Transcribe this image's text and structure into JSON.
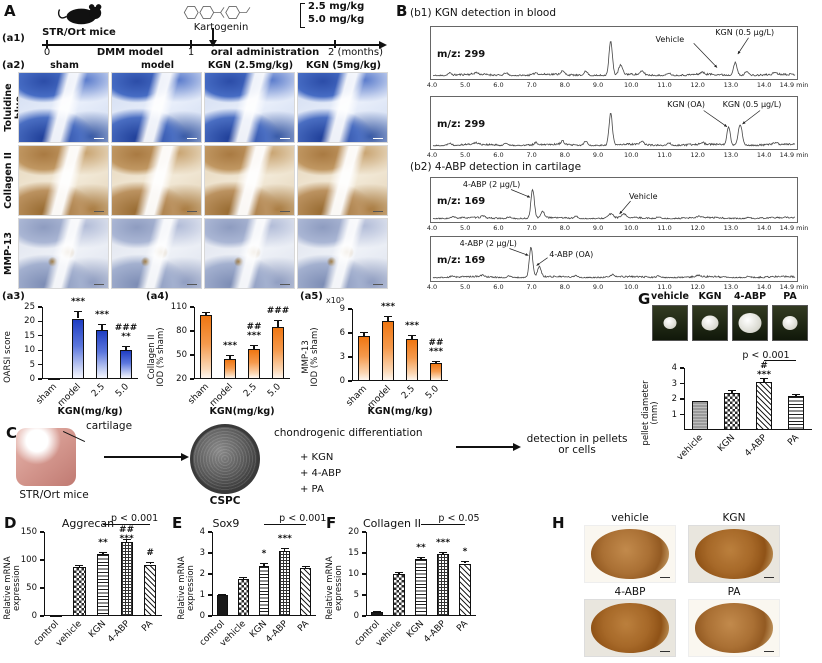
{
  "panels": {
    "A": "A",
    "B": "B",
    "C": "C",
    "D": "D",
    "E": "E",
    "F": "F",
    "G": "G",
    "H": "H"
  },
  "a1": {
    "tag": "(a1)",
    "mouse_label": "STR/Ort mice",
    "drug_label": "Kartogenin",
    "dose1": "2.5 mg/kg",
    "dose2": "5.0 mg/kg",
    "t0": "0",
    "t1": "1",
    "t2": "2 (months)",
    "phase1": "DMM model",
    "phase2": "oral administration"
  },
  "a2": {
    "tag": "(a2)",
    "rows": [
      "Toluidine blue",
      "Collagen II",
      "MMP-13"
    ],
    "cols": [
      "sham",
      "model",
      "KGN (2.5mg/kg)",
      "KGN (5mg/kg)"
    ]
  },
  "charts": {
    "a3": {
      "tag": "(a3)",
      "type": "bar",
      "ylabel": "OARSI score",
      "categories": [
        "sham",
        "model",
        "2.5",
        "5.0"
      ],
      "values": [
        0.5,
        21,
        17,
        10
      ],
      "errors": [
        0.3,
        2.5,
        2,
        1.5
      ],
      "sig": [
        "",
        "***",
        "***",
        "###\n**"
      ],
      "yticks": [
        0,
        5,
        10,
        15,
        20,
        25
      ],
      "ylim": [
        0,
        25
      ],
      "xlabel": "KGN(mg/kg)",
      "style": "blue"
    },
    "a4": {
      "tag": "(a4)",
      "type": "bar",
      "ylabel": "Collagen II\nIOD (% sham)",
      "categories": [
        "sham",
        "model",
        "2.5",
        "5.0"
      ],
      "values": [
        100,
        45,
        57,
        85
      ],
      "errors": [
        4,
        5,
        5,
        9
      ],
      "sig": [
        "",
        "***",
        "##\n***",
        "###"
      ],
      "yticks": [
        20,
        50,
        80,
        110
      ],
      "ylim": [
        20,
        110
      ],
      "xlabel": "KGN(mg/kg)",
      "style": "orange"
    },
    "a5": {
      "tag": "(a5)",
      "type": "bar",
      "ylabel": "MMP-13\nIOD (% sham)",
      "y_multiplier": "x10³",
      "categories": [
        "sham",
        "model",
        "2.5",
        "5.0"
      ],
      "values": [
        5.6,
        7.5,
        5.2,
        2.2
      ],
      "errors": [
        0.5,
        0.6,
        0.5,
        0.3
      ],
      "sig": [
        "",
        "***",
        "***",
        "##\n***"
      ],
      "yticks": [
        0,
        3,
        6,
        9
      ],
      "ylim": [
        0,
        9
      ],
      "xlabel": "KGN(mg/kg)",
      "style": "orange"
    },
    "D": {
      "title": "Aggrecan",
      "type": "bar",
      "ylabel": "Relative mRNA\nexpression",
      "categories": [
        "control",
        "vehicle",
        "KGN",
        "4-ABP",
        "PA"
      ],
      "values": [
        2,
        88,
        110,
        132,
        92
      ],
      "errors": [
        1,
        4,
        5,
        5,
        4
      ],
      "sig": [
        "",
        "",
        "**",
        "##\n***",
        "#"
      ],
      "yticks": [
        0,
        50,
        100,
        150
      ],
      "ylim": [
        0,
        150
      ],
      "patterns": [
        "solid",
        "check",
        "hlines",
        "grid",
        "diag"
      ],
      "bracket": {
        "from": 2,
        "to": 4,
        "label": "p < 0.001",
        "dx": 8
      }
    },
    "E": {
      "title": "Sox9",
      "type": "bar",
      "ylabel": "Relative mRNA\nexpression",
      "categories": [
        "control",
        "vehicle",
        "KGN",
        "4-ABP",
        "PA"
      ],
      "values": [
        1,
        1.75,
        2.4,
        3.1,
        2.3
      ],
      "errors": [
        0.05,
        0.1,
        0.15,
        0.12,
        0.1
      ],
      "sig": [
        "",
        "",
        "*",
        "***",
        ""
      ],
      "yticks": [
        0,
        1,
        2,
        3,
        4
      ],
      "ylim": [
        0,
        4
      ],
      "patterns": [
        "solid",
        "check",
        "hlines",
        "grid",
        "diag"
      ],
      "bracket": {
        "from": 2,
        "to": 4,
        "label": "p < 0.001",
        "dx": 18
      }
    },
    "F": {
      "title": "Collagen II",
      "type": "bar",
      "ylabel": "Relative mRNA\nexpression",
      "categories": [
        "control",
        "vehicle",
        "KGN",
        "4-ABP",
        "PA"
      ],
      "values": [
        1,
        10,
        13.5,
        14.8,
        12.5
      ],
      "errors": [
        0.3,
        0.5,
        0.6,
        0.5,
        0.5
      ],
      "sig": [
        "",
        "",
        "**",
        "***",
        "*"
      ],
      "yticks": [
        0,
        5,
        10,
        15,
        20
      ],
      "ylim": [
        0,
        20
      ],
      "patterns": [
        "solid",
        "check",
        "hlines",
        "grid",
        "diag"
      ],
      "bracket": {
        "from": 2,
        "to": 4,
        "label": "p < 0.05",
        "dx": 16
      }
    },
    "G": {
      "type": "bar",
      "ylabel": "pellet diameter\n(mm)",
      "categories": [
        "vehicle",
        "KGN",
        "4-ABP",
        "PA"
      ],
      "values": [
        1.9,
        2.4,
        3.1,
        2.2
      ],
      "errors": [
        0.06,
        0.18,
        0.28,
        0.12
      ],
      "sig": [
        "",
        "",
        "#\n***",
        ""
      ],
      "yticks": [
        1,
        2,
        3,
        4
      ],
      "ylim": [
        0,
        4
      ],
      "patterns": [
        "gray",
        "check",
        "diag",
        "hlines"
      ],
      "bracket": {
        "from": 2,
        "to": 3,
        "label": "p < 0.001",
        "dx": -14
      }
    }
  },
  "b": {
    "b1_title": "(b1) KGN detection in blood",
    "b2_title": "(b2) 4-ABP detection in cartilage",
    "xmin": 4,
    "xmax": 14.9,
    "xticks": [
      "4.0",
      "5.0",
      "6.0",
      "7.0",
      "8.0",
      "9.0",
      "10.0",
      "11.0",
      "12.0",
      "13.0",
      "14.0",
      "14.9 min"
    ],
    "traces": [
      {
        "mz": "m/z: 299",
        "seed": 11,
        "peaks": [
          [
            4.5,
            0.05
          ],
          [
            5.3,
            0.04
          ],
          [
            6.2,
            0.06
          ],
          [
            7.1,
            0.05
          ],
          [
            7.9,
            0.08
          ],
          [
            8.6,
            0.1
          ],
          [
            9.35,
            0.8,
            0.05
          ],
          [
            9.65,
            0.22
          ],
          [
            10.3,
            0.08
          ],
          [
            11.1,
            0.06
          ],
          [
            12.1,
            0.05
          ],
          [
            13.1,
            0.3
          ],
          [
            13.45,
            0.1
          ],
          [
            14.3,
            0.05
          ]
        ],
        "annotations": [
          {
            "text": "Vehicle",
            "tx": 10.7,
            "ty": 0.14,
            "line": [
              11.85,
              0.3,
              12.55,
              0.75
            ]
          },
          {
            "text": "KGN (0.5 μg/L)",
            "tx": 12.5,
            "ty": 0.02,
            "line": [
              13.5,
              0.2,
              13.18,
              0.5
            ]
          }
        ]
      },
      {
        "mz": "m/z: 299",
        "seed": 22,
        "peaks": [
          [
            4.5,
            0.05
          ],
          [
            5.3,
            0.04
          ],
          [
            6.2,
            0.06
          ],
          [
            7.1,
            0.05
          ],
          [
            7.9,
            0.08
          ],
          [
            8.6,
            0.1
          ],
          [
            9.35,
            0.75,
            0.05
          ],
          [
            10.3,
            0.08
          ],
          [
            11.1,
            0.06
          ],
          [
            12.1,
            0.05
          ],
          [
            12.9,
            0.45,
            0.05
          ],
          [
            13.25,
            0.5,
            0.06
          ],
          [
            14.3,
            0.05
          ]
        ],
        "annotations": [
          {
            "text": "KGN (OA)",
            "tx": 11.05,
            "ty": 0.06,
            "line": [
              12.15,
              0.25,
              12.85,
              0.55
            ]
          },
          {
            "text": "KGN (0.5 μg/L)",
            "tx": 12.72,
            "ty": 0.06,
            "line": [
              13.85,
              0.25,
              13.32,
              0.5
            ]
          }
        ]
      },
      {
        "mz": "m/z: 169",
        "seed": 33,
        "peaks": [
          [
            4.6,
            0.04
          ],
          [
            5.5,
            0.05
          ],
          [
            6.3,
            0.05
          ],
          [
            7.0,
            0.85,
            0.05
          ],
          [
            7.3,
            0.18
          ],
          [
            8.3,
            0.06
          ],
          [
            9.35,
            0.12,
            0.08
          ],
          [
            9.75,
            0.1,
            0.07
          ],
          [
            10.8,
            0.05
          ],
          [
            12.0,
            0.04
          ],
          [
            13.5,
            0.04
          ]
        ],
        "annotations": [
          {
            "text": "4-ABP (2 μg/L)",
            "tx": 4.9,
            "ty": 0.05,
            "line": [
              6.35,
              0.25,
              6.92,
              0.42
            ]
          },
          {
            "text": "Vehicle",
            "tx": 9.9,
            "ty": 0.3,
            "line": [
              9.95,
              0.5,
              9.62,
              0.78
            ]
          }
        ]
      },
      {
        "mz": "m/z: 169",
        "seed": 44,
        "peaks": [
          [
            4.6,
            0.04
          ],
          [
            5.5,
            0.05
          ],
          [
            6.3,
            0.05
          ],
          [
            6.95,
            0.88,
            0.05
          ],
          [
            7.2,
            0.3
          ],
          [
            8.3,
            0.06
          ],
          [
            9.4,
            0.07
          ],
          [
            10.8,
            0.05
          ],
          [
            12.0,
            0.04
          ],
          [
            13.5,
            0.04
          ]
        ],
        "annotations": [
          {
            "text": "4-ABP (2 μg/L)",
            "tx": 4.8,
            "ty": 0.05,
            "line": [
              6.3,
              0.25,
              6.87,
              0.4
            ]
          },
          {
            "text": "4-ABP (OA)",
            "tx": 7.5,
            "ty": 0.28,
            "line": [
              7.45,
              0.45,
              7.12,
              0.62
            ]
          }
        ]
      }
    ]
  },
  "c": {
    "cartilage": "cartilage",
    "mice": "STR/Ort mice",
    "cspc": "CSPC",
    "diff": "chondrogenic differentiation",
    "add1": "+ KGN",
    "add2": "+ 4-ABP",
    "add3": "+ PA",
    "detection": "detection in pellets\nor cells"
  },
  "g": {
    "labels": [
      "vehicle",
      "KGN",
      "4-ABP",
      "PA"
    ]
  },
  "h": {
    "labels": [
      "vehicle",
      "KGN",
      "4-ABP",
      "PA"
    ]
  }
}
